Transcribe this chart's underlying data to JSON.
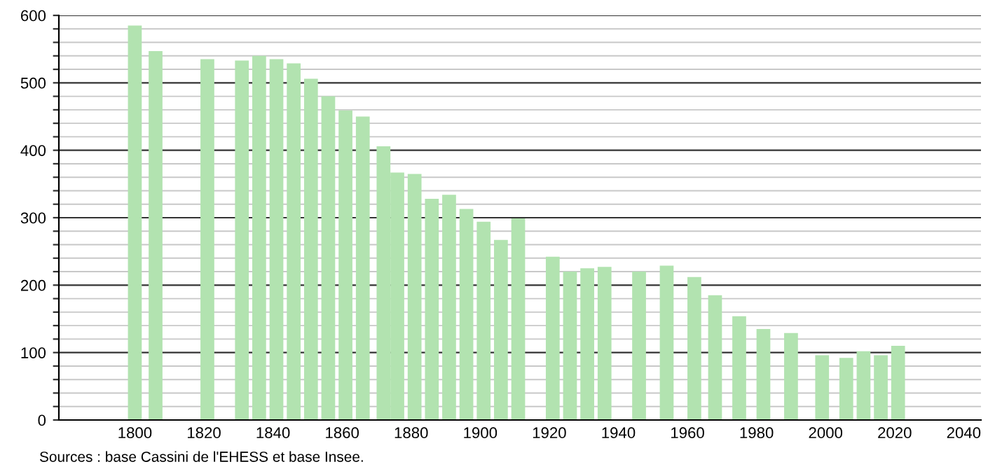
{
  "chart_data": {
    "type": "bar",
    "x": [
      1800,
      1806,
      1821,
      1831,
      1836,
      1841,
      1846,
      1851,
      1856,
      1861,
      1866,
      1872,
      1876,
      1881,
      1886,
      1891,
      1896,
      1901,
      1906,
      1911,
      1921,
      1926,
      1931,
      1936,
      1946,
      1954,
      1962,
      1968,
      1975,
      1982,
      1990,
      1999,
      2006,
      2011,
      2016,
      2021
    ],
    "values": [
      585,
      547,
      535,
      533,
      540,
      535,
      529,
      506,
      480,
      459,
      450,
      406,
      367,
      365,
      328,
      334,
      313,
      294,
      267,
      299,
      242,
      220,
      225,
      227,
      220,
      229,
      212,
      185,
      154,
      135,
      129,
      96,
      92,
      102,
      96,
      110
    ],
    "color": "#b2e3b0",
    "xlim": [
      1778,
      2045
    ],
    "xticks": [
      1800,
      1820,
      1840,
      1860,
      1880,
      1900,
      1920,
      1940,
      1960,
      1980,
      2000,
      2020,
      2040
    ],
    "ylim": [
      0,
      600
    ],
    "yticks": [
      0,
      {
        "value": 20,
        "label": null
      },
      {
        "value": 40,
        "label": null
      },
      {
        "value": 60,
        "label": null
      },
      {
        "value": 80,
        "label": null
      },
      100,
      {
        "value": 120,
        "label": null
      },
      {
        "value": 140,
        "label": null
      },
      {
        "value": 160,
        "label": null
      },
      {
        "value": 180,
        "label": null
      },
      200,
      {
        "value": 220,
        "label": null
      },
      {
        "value": 240,
        "label": null
      },
      {
        "value": 260,
        "label": null
      },
      {
        "value": 280,
        "label": null
      },
      300,
      {
        "value": 320,
        "label": null
      },
      {
        "value": 340,
        "label": null
      },
      {
        "value": 360,
        "label": null
      },
      {
        "value": 380,
        "label": null
      },
      400,
      {
        "value": 420,
        "label": null
      },
      {
        "value": 440,
        "label": null
      },
      {
        "value": 460,
        "label": null
      },
      {
        "value": 480,
        "label": null
      },
      500,
      {
        "value": 520,
        "label": null
      },
      {
        "value": 540,
        "label": null
      },
      {
        "value": 560,
        "label": null
      },
      {
        "value": 580,
        "label": null
      },
      600
    ],
    "grid": "y",
    "annotations": [
      "Sources : base Cassini de l'EHESS et base Insee."
    ]
  }
}
